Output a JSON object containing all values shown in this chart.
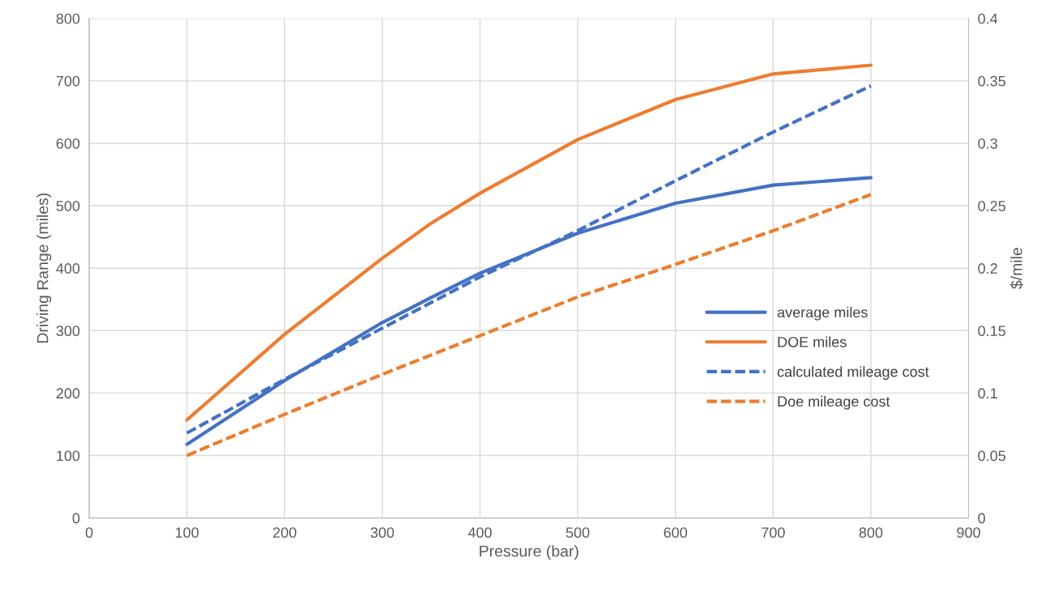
{
  "chart_data": {
    "type": "line",
    "xlabel": "Pressure (bar)",
    "ylabel": "Driving Range (miles)",
    "y2label": "$/mile",
    "xlim": [
      0,
      900
    ],
    "xticks": [
      0,
      100,
      200,
      300,
      400,
      500,
      600,
      700,
      800,
      900
    ],
    "ylim": [
      0,
      800
    ],
    "yticks": [
      0,
      100,
      200,
      300,
      400,
      500,
      600,
      700,
      800
    ],
    "y2lim": [
      0,
      0.4
    ],
    "y2ticks": [
      0,
      0.05,
      0.1,
      0.15,
      0.2,
      0.25,
      0.3,
      0.35,
      0.4
    ],
    "grid": true,
    "legend": "right",
    "marker": "none",
    "series": [
      {
        "name": "average miles",
        "color": "#4472c4",
        "line_style": "solid",
        "x": [
          100,
          200,
          300,
          350,
          400,
          500,
          600,
          700,
          800
        ],
        "values": [
          118,
          220,
          313,
          353,
          392,
          456,
          504,
          533,
          545
        ]
      },
      {
        "name": "DOE miles",
        "color": "#ed7d31",
        "line_style": "solid",
        "x": [
          100,
          200,
          300,
          350,
          400,
          500,
          600,
          700,
          800
        ],
        "values": [
          157,
          294,
          416,
          472,
          520,
          606,
          670,
          711,
          725
        ]
      },
      {
        "name": "calculated mileage cost",
        "color": "#4472c4",
        "line_style": "dashed",
        "axis": "y2",
        "x": [
          100,
          200,
          300,
          400,
          500,
          600,
          700,
          800
        ],
        "values": [
          0.068,
          0.111,
          0.152,
          0.193,
          0.23,
          0.27,
          0.309,
          0.346
        ]
      },
      {
        "name": "Doe mileage cost",
        "color": "#ed7d31",
        "line_style": "dashed",
        "axis": "y2",
        "x": [
          100,
          200,
          300,
          400,
          500,
          600,
          700,
          800
        ],
        "values": [
          0.05,
          0.083,
          0.115,
          0.146,
          0.177,
          0.203,
          0.23,
          0.259
        ]
      }
    ]
  }
}
